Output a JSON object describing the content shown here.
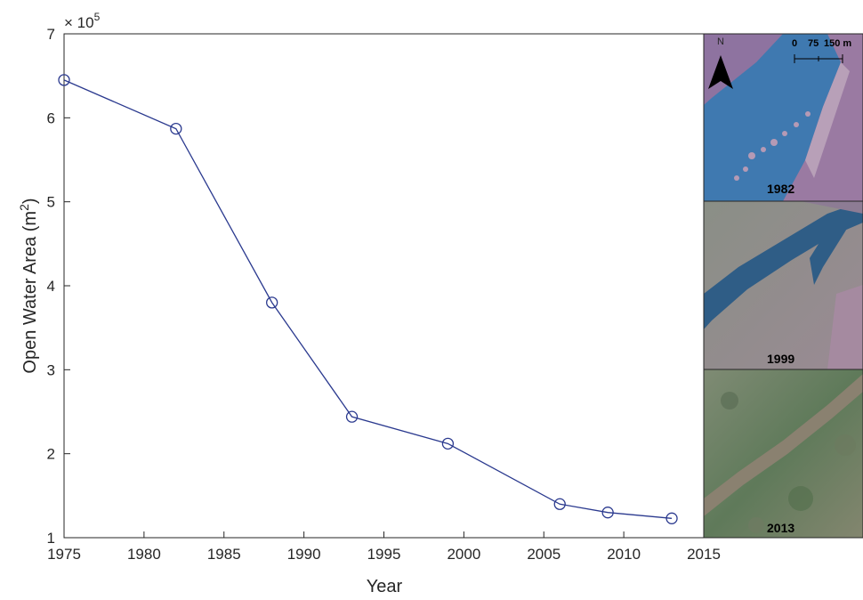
{
  "chart_data": {
    "type": "line",
    "xlabel": "Year",
    "ylabel": "Open Water Area (m",
    "ylabel_sup": "2",
    "ylabel_close": ")",
    "exponent_label": "× 10",
    "exponent_sup": "5",
    "xlim": [
      1975,
      2015
    ],
    "ylim": [
      1,
      7
    ],
    "x_ticks": [
      "1975",
      "1980",
      "1985",
      "1990",
      "1995",
      "2000",
      "2005",
      "2010",
      "2015"
    ],
    "y_ticks": [
      "1",
      "2",
      "3",
      "4",
      "5",
      "6",
      "7"
    ],
    "grid": false,
    "series": [
      {
        "marker": "circle",
        "color": "#2b3a8f",
        "x": [
          1975,
          1982,
          1988,
          1993,
          1999,
          2006,
          2009,
          2013
        ],
        "y": [
          6.45,
          5.87,
          3.8,
          2.44,
          2.12,
          1.4,
          1.3,
          1.23
        ]
      }
    ]
  },
  "inset_maps": {
    "north_label": "N",
    "scale_labels": [
      "0",
      "75",
      "150 m"
    ],
    "panels": [
      {
        "year": "1982"
      },
      {
        "year": "1999"
      },
      {
        "year": "2013"
      }
    ]
  }
}
